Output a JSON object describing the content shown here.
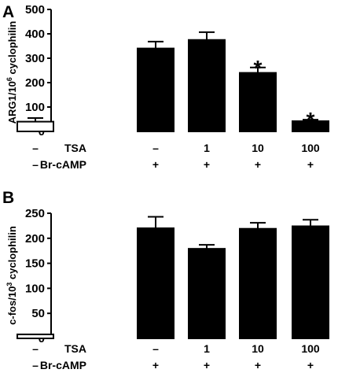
{
  "chart_data": [
    {
      "type": "bar",
      "panel": "A",
      "ylabel": "ARG1/10",
      "ylabel_sup": "6",
      "ylabel_suffix": " cyclophilin",
      "ylim": [
        0,
        500
      ],
      "yticks": [
        "0",
        "100",
        "200",
        "300",
        "400",
        "500"
      ],
      "values": [
        40,
        340,
        375,
        240,
        42
      ],
      "errors": [
        15,
        28,
        32,
        22,
        6
      ],
      "fills": [
        "#ffffff",
        "#000000",
        "#000000",
        "#000000",
        "#000000"
      ],
      "significance": [
        "",
        "",
        "",
        "*",
        "*"
      ],
      "treatments": [
        {
          "label": "TSA",
          "values": [
            "–",
            "–",
            "1",
            "10",
            "100"
          ]
        },
        {
          "label": "Br-cAMP",
          "values": [
            "–",
            "+",
            "+",
            "+",
            "+"
          ]
        }
      ]
    },
    {
      "type": "bar",
      "panel": "B",
      "ylabel": "c-fos/10",
      "ylabel_sup": "3",
      "ylabel_suffix": " cyclophilin",
      "ylim": [
        0,
        250
      ],
      "yticks": [
        "0",
        "50",
        "100",
        "150",
        "200",
        "250"
      ],
      "values": [
        8,
        220,
        179,
        219,
        224
      ],
      "errors": [
        0,
        23,
        8,
        12,
        13
      ],
      "fills": [
        "#ffffff",
        "#000000",
        "#000000",
        "#000000",
        "#000000"
      ],
      "significance": [
        "",
        "",
        "",
        "",
        ""
      ],
      "treatments": [
        {
          "label": "TSA",
          "values": [
            "–",
            "–",
            "1",
            "10",
            "100"
          ]
        },
        {
          "label": "Br-cAMP",
          "values": [
            "–",
            "+",
            "+",
            "+",
            "+"
          ]
        }
      ]
    }
  ],
  "style": {
    "ink": "#000000",
    "paper": "#ffffff"
  }
}
